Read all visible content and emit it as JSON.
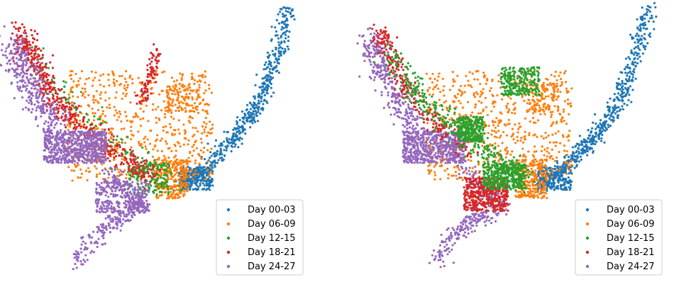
{
  "chart_data": [
    {
      "type": "scatter",
      "axes_visible": false,
      "legend_position": "lower right",
      "series": [
        {
          "name": "Day 00-03",
          "color": "#1f77b4",
          "description": "right diagonal arm from bottom-center to top-right"
        },
        {
          "name": "Day 06-09",
          "color": "#ff7f0e",
          "description": "central cloud and patch near upper center-right"
        },
        {
          "name": "Day 12-15",
          "color": "#2ca02c",
          "description": "sparse band along left arm, small cluster near bottom center"
        },
        {
          "name": "Day 18-21",
          "color": "#d62728",
          "description": "dense along left arm, spike in upper center"
        },
        {
          "name": "Day 24-27",
          "color": "#9467bd",
          "description": "dense left blob and bottom tail"
        }
      ]
    },
    {
      "type": "scatter",
      "axes_visible": false,
      "legend_position": "lower right",
      "series": [
        {
          "name": "Day 00-03",
          "color": "#1f77b4",
          "description": "right diagonal arm from bottom-center to top-right"
        },
        {
          "name": "Day 06-09",
          "color": "#ff7f0e",
          "description": "central cloud and patch near upper center-right"
        },
        {
          "name": "Day 12-15",
          "color": "#2ca02c",
          "description": "dense center blob and upper spike cluster"
        },
        {
          "name": "Day 18-21",
          "color": "#d62728",
          "description": "dense bottom cluster, band along left arm"
        },
        {
          "name": "Day 24-27",
          "color": "#9467bd",
          "description": "dense left blob and bottom tail"
        }
      ]
    }
  ]
}
